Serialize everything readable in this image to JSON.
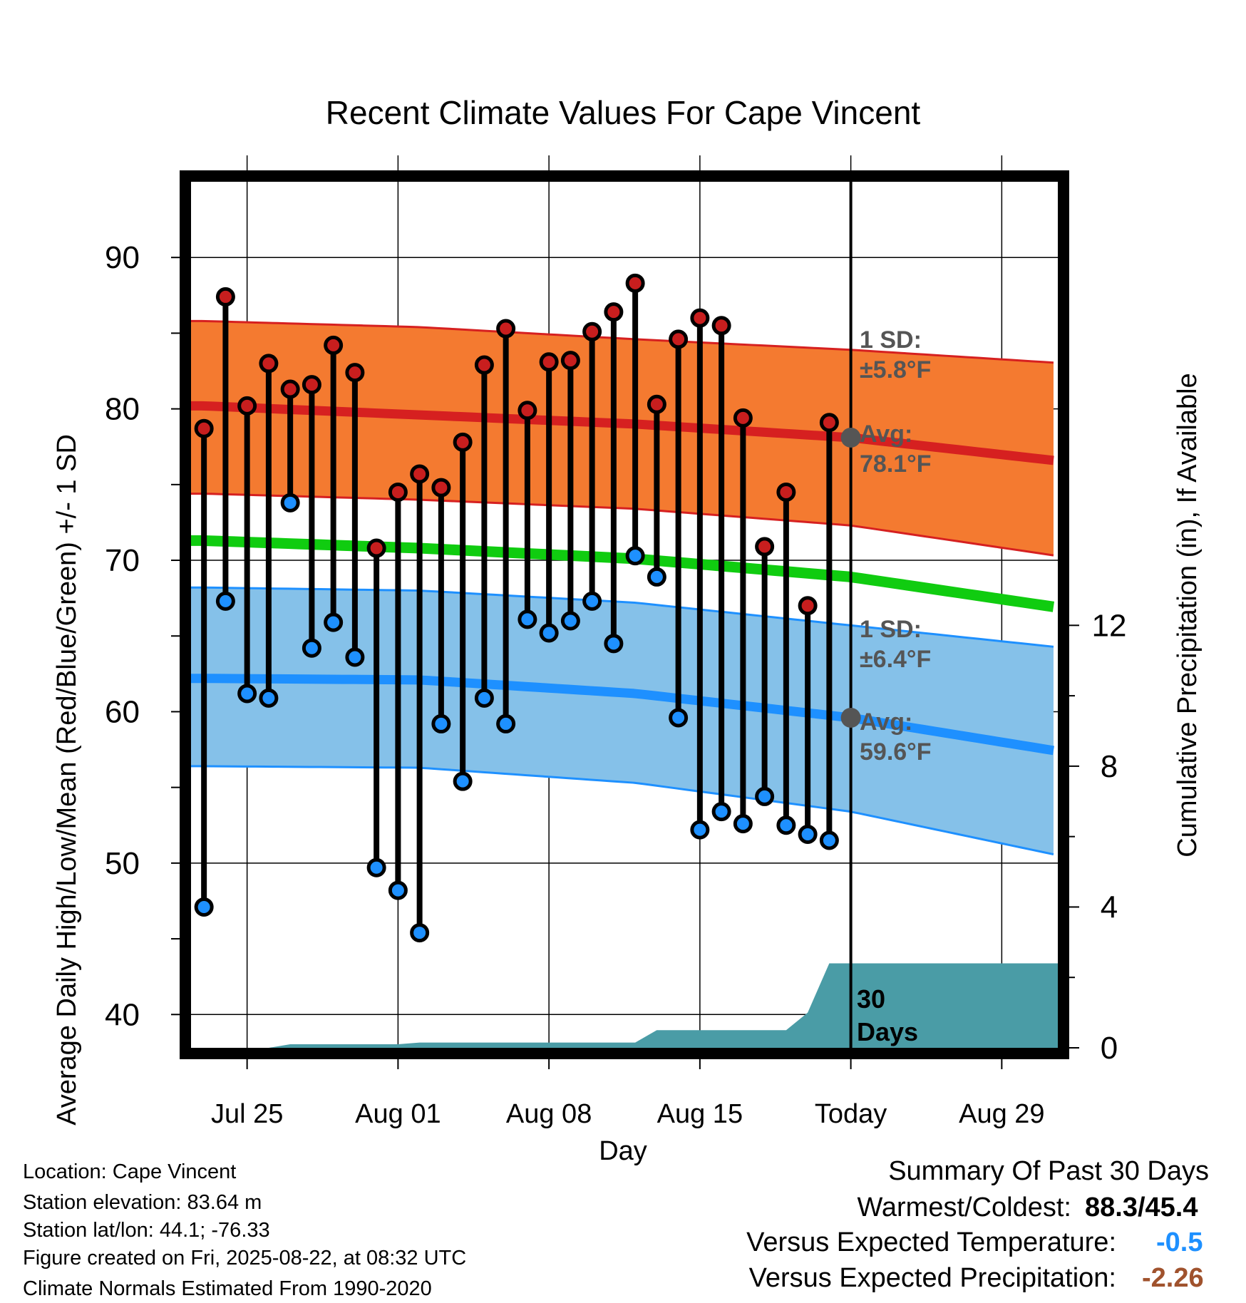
{
  "chart_data": {
    "type": "line",
    "title": "Recent Climate Values For Cape Vincent",
    "xlabel": "Day",
    "ylabel": "Average Daily High/Low/Mean (Red/Blue/Green) +/- 1 SD",
    "y2label": "Cumulative Precipitation (in), If Available",
    "ylim": [
      37.8,
      95
    ],
    "y2lim": [
      0,
      24.6
    ],
    "yticks": [
      "40",
      "50",
      "60",
      "70",
      "80",
      "90"
    ],
    "y2ticks": [
      "0",
      "4",
      "8",
      "12"
    ],
    "x_ticks": [
      {
        "label": "Jul 25",
        "day": 2
      },
      {
        "label": "Aug 01",
        "day": 9
      },
      {
        "label": "Aug 08",
        "day": 16
      },
      {
        "label": "Aug 15",
        "day": 23
      },
      {
        "label": "Today",
        "day": 30
      },
      {
        "label": "Aug 29",
        "day": 37
      }
    ],
    "x_range": [
      -0.6,
      39.6
    ],
    "grid": true,
    "today_day": 30,
    "today_label": "30 Days",
    "series": [
      {
        "name": "High",
        "color": "#c81e1e",
        "values": [
          78.7,
          87.4,
          80.2,
          83.0,
          81.3,
          81.6,
          84.2,
          82.4,
          70.8,
          74.5,
          75.7,
          74.8,
          77.8,
          82.9,
          85.3,
          79.9,
          83.1,
          83.2,
          85.1,
          86.4,
          88.3,
          80.3,
          84.6,
          86.0,
          85.5,
          79.4,
          70.9,
          74.5,
          67.0,
          79.1
        ]
      },
      {
        "name": "Low",
        "color": "#1e90ff",
        "values": [
          47.1,
          67.3,
          61.2,
          60.9,
          73.8,
          64.2,
          65.9,
          63.6,
          49.7,
          48.2,
          45.4,
          59.2,
          55.4,
          60.9,
          59.2,
          66.1,
          65.2,
          66.0,
          67.3,
          64.5,
          70.3,
          68.9,
          59.6,
          52.2,
          53.4,
          52.6,
          54.4,
          52.5,
          51.9,
          51.5
        ]
      }
    ],
    "normals": {
      "days": [
        0,
        10,
        20,
        30,
        40
      ],
      "high_mean": [
        80.2,
        79.6,
        79.0,
        78.1,
        76.5
      ],
      "high_sd_upper": [
        85.8,
        85.4,
        84.6,
        83.9,
        83.0
      ],
      "high_sd_lower": [
        74.4,
        74.0,
        73.4,
        72.3,
        70.2
      ],
      "mean": [
        71.3,
        70.8,
        70.1,
        68.9,
        66.8
      ],
      "low_mean": [
        62.2,
        62.1,
        61.2,
        59.6,
        57.3
      ],
      "low_sd_upper": [
        68.2,
        68.0,
        67.2,
        65.7,
        64.2
      ],
      "low_sd_lower": [
        56.4,
        56.3,
        55.3,
        53.4,
        50.4
      ],
      "high_color": "#f47a30",
      "low_color": "#85c1e9",
      "mean_color": "#10cc10"
    },
    "precipitation": {
      "color": "#4a9ca6",
      "days": [
        -0.6,
        3,
        4,
        9,
        10,
        20,
        21,
        23,
        27,
        28,
        29,
        39.6
      ],
      "values": [
        0,
        0,
        0.1,
        0.1,
        0.15,
        0.15,
        0.5,
        0.5,
        0.5,
        1.0,
        2.4,
        2.4
      ]
    },
    "annotations": {
      "high_sd_label": "1 SD:",
      "high_sd_value": "±5.8°F",
      "high_avg_label": "Avg:",
      "high_avg_value": "78.1°F",
      "low_sd_label": "1 SD:",
      "low_sd_value": "±6.4°F",
      "low_avg_label": "Avg:",
      "low_avg_value": "59.6°F",
      "high_avg_today": 78.1,
      "low_avg_today": 59.6
    }
  },
  "info": {
    "location": "Location: Cape Vincent",
    "elevation": "Station elevation: 83.64 m",
    "latlon": "Station lat/lon: 44.1; -76.33",
    "created": "Figure created on Fri, 2025-08-22, at 08:32 UTC",
    "normals": "Climate Normals Estimated From 1990-2020"
  },
  "summary": {
    "title": "Summary Of Past 30 Days",
    "warm_cold_label": "Warmest/Coldest:",
    "warm_cold_value": "88.3/45.4",
    "temp_label": "Versus Expected Temperature:",
    "temp_value": "-0.5",
    "temp_color": "#1e90ff",
    "precip_label": "Versus Expected Precipitation:",
    "precip_value": "-2.26",
    "precip_color": "#a0522d"
  }
}
